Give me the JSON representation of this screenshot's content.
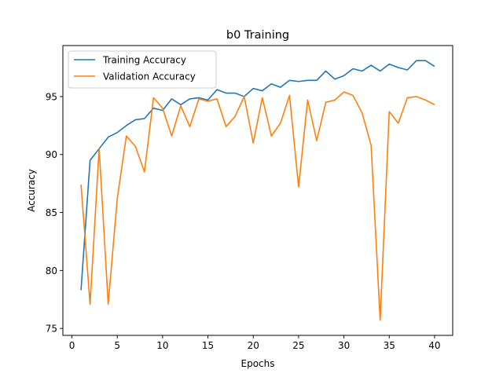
{
  "chart_data": {
    "type": "line",
    "title": "b0 Training",
    "xlabel": "Epochs",
    "ylabel": "Accuracy",
    "xlim": [
      -1,
      42
    ],
    "ylim": [
      74.4,
      99.4
    ],
    "xticks": [
      0,
      5,
      10,
      15,
      20,
      25,
      30,
      35,
      40
    ],
    "yticks": [
      75,
      80,
      85,
      90,
      95
    ],
    "grid": false,
    "legend_position": "top-left",
    "x": [
      1,
      2,
      3,
      4,
      5,
      6,
      7,
      8,
      9,
      10,
      11,
      12,
      13,
      14,
      15,
      16,
      17,
      18,
      19,
      20,
      21,
      22,
      23,
      24,
      25,
      26,
      27,
      28,
      29,
      30,
      31,
      32,
      33,
      34,
      35,
      36,
      37,
      38,
      39,
      40
    ],
    "series": [
      {
        "name": "Training Accuracy",
        "color": "#1f77b4",
        "values": [
          78.3,
          89.5,
          90.5,
          91.5,
          91.9,
          92.5,
          93.0,
          93.1,
          94.0,
          93.8,
          94.8,
          94.3,
          94.8,
          94.9,
          94.7,
          95.6,
          95.3,
          95.3,
          95.0,
          95.7,
          95.5,
          96.1,
          95.8,
          96.4,
          96.3,
          96.4,
          96.4,
          97.2,
          96.5,
          96.8,
          97.4,
          97.2,
          97.7,
          97.2,
          97.8,
          97.5,
          97.3,
          98.1,
          98.1,
          97.6
        ]
      },
      {
        "name": "Validation Accuracy",
        "color": "#ff7f0e",
        "values": [
          87.4,
          77.1,
          90.5,
          77.1,
          86.2,
          91.6,
          90.7,
          88.5,
          94.9,
          94.0,
          91.6,
          94.2,
          92.4,
          94.8,
          94.6,
          94.8,
          92.4,
          93.3,
          95.0,
          91.0,
          94.9,
          91.6,
          92.7,
          95.1,
          87.2,
          94.7,
          91.2,
          94.5,
          94.7,
          95.4,
          95.1,
          93.6,
          90.8,
          75.7,
          93.7,
          92.7,
          94.9,
          95.0,
          94.7,
          94.3
        ]
      }
    ]
  }
}
